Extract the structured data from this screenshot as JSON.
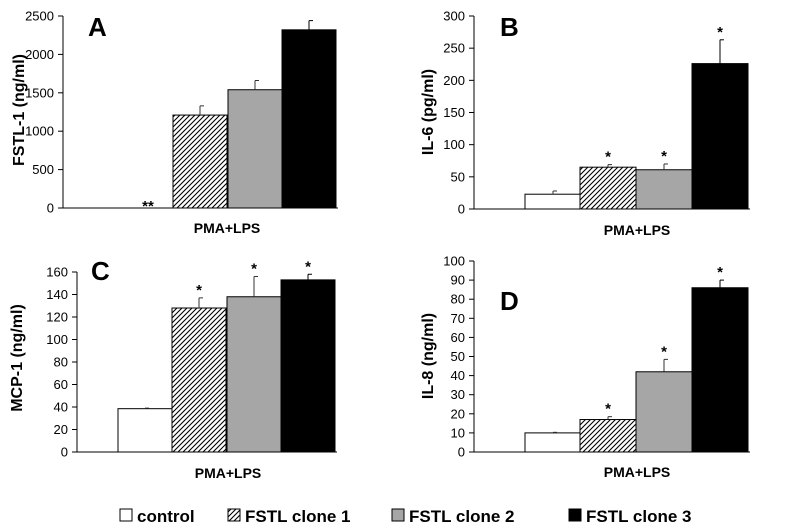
{
  "legend": [
    {
      "label": "control",
      "fill": "#ffffff"
    },
    {
      "label": "FSTL clone 1",
      "fill": "hatch"
    },
    {
      "label": "FSTL clone 2",
      "fill": "#a6a6a6"
    },
    {
      "label": "FSTL clone 3",
      "fill": "#000000"
    }
  ],
  "colors": {
    "axis": "#000000",
    "gray": "#a6a6a6",
    "black": "#000000",
    "white": "#ffffff"
  },
  "chart_data": [
    {
      "type": "bar",
      "panel": "A",
      "ylabel": "FSTL-1 (ng/ml)",
      "xlabel": "PMA+LPS",
      "ylim": [
        0,
        2500
      ],
      "yticks": [
        "0",
        "500",
        "1000",
        "1500",
        "2000",
        "2500"
      ],
      "series": [
        {
          "name": "control",
          "value": 0,
          "error": 0,
          "sig": "**"
        },
        {
          "name": "FSTL clone 1",
          "value": 1210,
          "error": 120,
          "sig": ""
        },
        {
          "name": "FSTL clone 2",
          "value": 1540,
          "error": 120,
          "sig": ""
        },
        {
          "name": "FSTL clone 3",
          "value": 2320,
          "error": 120,
          "sig": ""
        }
      ]
    },
    {
      "type": "bar",
      "panel": "B",
      "ylabel": "IL-6 (pg/ml)",
      "xlabel": "PMA+LPS",
      "ylim": [
        0,
        300
      ],
      "yticks": [
        "0",
        "50",
        "100",
        "150",
        "200",
        "250",
        "300"
      ],
      "series": [
        {
          "name": "control",
          "value": 23,
          "error": 5,
          "sig": ""
        },
        {
          "name": "FSTL clone 1",
          "value": 65,
          "error": 4,
          "sig": "*"
        },
        {
          "name": "FSTL clone 2",
          "value": 61,
          "error": 9,
          "sig": "*"
        },
        {
          "name": "FSTL clone 3",
          "value": 226,
          "error": 37,
          "sig": "*"
        }
      ]
    },
    {
      "type": "bar",
      "panel": "C",
      "ylabel": "MCP-1 (ng/ml)",
      "xlabel": "PMA+LPS",
      "ylim": [
        0,
        160
      ],
      "yticks": [
        "0",
        "20",
        "40",
        "60",
        "80",
        "100",
        "120",
        "140",
        "160"
      ],
      "series": [
        {
          "name": "control",
          "value": 38.5,
          "error": 0.5,
          "sig": ""
        },
        {
          "name": "FSTL clone 1",
          "value": 128,
          "error": 9,
          "sig": "*"
        },
        {
          "name": "FSTL clone 2",
          "value": 138,
          "error": 18,
          "sig": "*"
        },
        {
          "name": "FSTL clone 3",
          "value": 153,
          "error": 5,
          "sig": "*"
        }
      ]
    },
    {
      "type": "bar",
      "panel": "D",
      "ylabel": "IL-8 (ng/ml)",
      "xlabel": "PMA+LPS",
      "ylim": [
        0,
        100
      ],
      "yticks": [
        "0",
        "10",
        "20",
        "30",
        "40",
        "50",
        "60",
        "70",
        "80",
        "90",
        "100"
      ],
      "series": [
        {
          "name": "control",
          "value": 10,
          "error": 0.3,
          "sig": ""
        },
        {
          "name": "FSTL clone 1",
          "value": 17,
          "error": 1.5,
          "sig": "*"
        },
        {
          "name": "FSTL clone 2",
          "value": 42,
          "error": 6.5,
          "sig": "*"
        },
        {
          "name": "FSTL clone 3",
          "value": 86,
          "error": 4,
          "sig": "*"
        }
      ]
    }
  ]
}
